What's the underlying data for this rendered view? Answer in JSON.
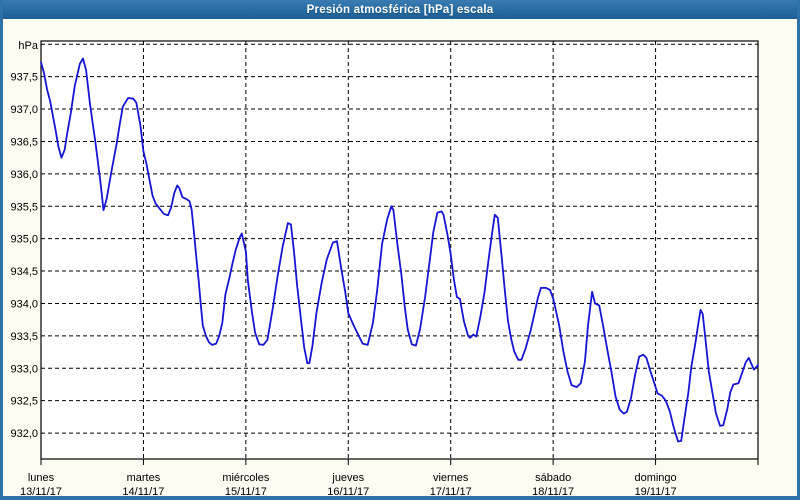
{
  "window": {
    "title": "Presión atmosférica [hPa] escala"
  },
  "colors": {
    "titlebar_blue": "#2a6fa4",
    "frame_border_blue": "#2e72a8",
    "page_background": "#fcfcf2",
    "plot_background": "#ffffff",
    "gridline": "#000000",
    "line_blue": "#1515d2",
    "label_text": "#000000",
    "title_text": "#ffffff"
  },
  "chart_data": {
    "type": "line",
    "title": "Presión atmosférica [hPa] escala",
    "unit_label": "hPa",
    "ylabel": "hPa",
    "ylim": [
      931.6,
      938.05
    ],
    "y_ticks": [
      932.0,
      932.5,
      933.0,
      933.5,
      934.0,
      934.5,
      935.0,
      935.5,
      936.0,
      936.5,
      937.0,
      937.5
    ],
    "y_grid_extra": [
      938.0
    ],
    "decimal_separator": ",",
    "grid": "dashed black, horizontal every 0.5 hPa, vertical at each day boundary",
    "legend_position": "none",
    "x_days": [
      {
        "name": "lunes",
        "date": "13/11/17"
      },
      {
        "name": "martes",
        "date": "14/11/17"
      },
      {
        "name": "miércoles",
        "date": "15/11/17"
      },
      {
        "name": "jueves",
        "date": "16/11/17"
      },
      {
        "name": "viernes",
        "date": "17/11/17"
      },
      {
        "name": "sábado",
        "date": "18/11/17"
      },
      {
        "name": "domingo",
        "date": "19/11/17"
      }
    ],
    "series": [
      {
        "name": "Presión atmosférica [hPa]",
        "x_unit": "days since lunes 13/11/17 00:00",
        "points": [
          [
            0.0,
            937.72
          ],
          [
            0.03,
            937.55
          ],
          [
            0.06,
            937.3
          ],
          [
            0.09,
            937.12
          ],
          [
            0.12,
            936.86
          ],
          [
            0.14,
            936.7
          ],
          [
            0.17,
            936.42
          ],
          [
            0.2,
            936.25
          ],
          [
            0.23,
            936.37
          ],
          [
            0.26,
            936.66
          ],
          [
            0.29,
            936.93
          ],
          [
            0.33,
            937.36
          ],
          [
            0.38,
            937.7
          ],
          [
            0.41,
            937.78
          ],
          [
            0.44,
            937.6
          ],
          [
            0.48,
            937.05
          ],
          [
            0.53,
            936.5
          ],
          [
            0.58,
            935.88
          ],
          [
            0.61,
            935.44
          ],
          [
            0.64,
            935.61
          ],
          [
            0.69,
            936.06
          ],
          [
            0.74,
            936.48
          ],
          [
            0.77,
            936.78
          ],
          [
            0.8,
            937.04
          ],
          [
            0.85,
            937.17
          ],
          [
            0.9,
            937.16
          ],
          [
            0.93,
            937.1
          ],
          [
            0.97,
            936.75
          ],
          [
            1.0,
            936.35
          ],
          [
            1.03,
            936.15
          ],
          [
            1.06,
            935.9
          ],
          [
            1.09,
            935.66
          ],
          [
            1.12,
            935.54
          ],
          [
            1.16,
            935.46
          ],
          [
            1.2,
            935.38
          ],
          [
            1.24,
            935.36
          ],
          [
            1.27,
            935.48
          ],
          [
            1.3,
            935.7
          ],
          [
            1.33,
            935.82
          ],
          [
            1.35,
            935.78
          ],
          [
            1.38,
            935.64
          ],
          [
            1.42,
            935.61
          ],
          [
            1.45,
            935.58
          ],
          [
            1.47,
            935.45
          ],
          [
            1.49,
            935.15
          ],
          [
            1.52,
            934.65
          ],
          [
            1.54,
            934.35
          ],
          [
            1.56,
            933.98
          ],
          [
            1.58,
            933.66
          ],
          [
            1.61,
            933.5
          ],
          [
            1.64,
            933.4
          ],
          [
            1.67,
            933.36
          ],
          [
            1.71,
            933.38
          ],
          [
            1.74,
            933.5
          ],
          [
            1.77,
            933.7
          ],
          [
            1.8,
            934.14
          ],
          [
            1.84,
            934.4
          ],
          [
            1.87,
            934.62
          ],
          [
            1.9,
            934.82
          ],
          [
            1.94,
            935.02
          ],
          [
            1.96,
            935.08
          ],
          [
            2.0,
            934.8
          ],
          [
            2.02,
            934.35
          ],
          [
            2.06,
            933.86
          ],
          [
            2.09,
            933.55
          ],
          [
            2.13,
            933.37
          ],
          [
            2.17,
            933.36
          ],
          [
            2.21,
            933.44
          ],
          [
            2.26,
            933.9
          ],
          [
            2.31,
            934.42
          ],
          [
            2.36,
            934.88
          ],
          [
            2.41,
            935.24
          ],
          [
            2.44,
            935.22
          ],
          [
            2.47,
            934.8
          ],
          [
            2.5,
            934.28
          ],
          [
            2.54,
            933.72
          ],
          [
            2.57,
            933.32
          ],
          [
            2.6,
            933.08
          ],
          [
            2.62,
            933.08
          ],
          [
            2.65,
            933.34
          ],
          [
            2.69,
            933.86
          ],
          [
            2.74,
            934.32
          ],
          [
            2.79,
            934.68
          ],
          [
            2.85,
            934.94
          ],
          [
            2.89,
            934.96
          ],
          [
            2.93,
            934.55
          ],
          [
            2.97,
            934.18
          ],
          [
            3.0,
            933.85
          ],
          [
            3.05,
            933.67
          ],
          [
            3.09,
            933.54
          ],
          [
            3.14,
            933.38
          ],
          [
            3.19,
            933.36
          ],
          [
            3.24,
            933.7
          ],
          [
            3.28,
            934.18
          ],
          [
            3.33,
            934.92
          ],
          [
            3.38,
            935.3
          ],
          [
            3.42,
            935.5
          ],
          [
            3.44,
            935.44
          ],
          [
            3.48,
            934.9
          ],
          [
            3.52,
            934.43
          ],
          [
            3.55,
            933.97
          ],
          [
            3.58,
            933.6
          ],
          [
            3.62,
            933.37
          ],
          [
            3.66,
            933.35
          ],
          [
            3.7,
            933.6
          ],
          [
            3.75,
            934.1
          ],
          [
            3.79,
            934.6
          ],
          [
            3.83,
            935.1
          ],
          [
            3.87,
            935.4
          ],
          [
            3.91,
            935.42
          ],
          [
            3.93,
            935.37
          ],
          [
            3.97,
            935.05
          ],
          [
            4.0,
            934.76
          ],
          [
            4.03,
            934.38
          ],
          [
            4.06,
            934.1
          ],
          [
            4.09,
            934.07
          ],
          [
            4.13,
            933.72
          ],
          [
            4.17,
            933.5
          ],
          [
            4.19,
            933.47
          ],
          [
            4.22,
            933.52
          ],
          [
            4.25,
            933.49
          ],
          [
            4.29,
            933.8
          ],
          [
            4.33,
            934.17
          ],
          [
            4.37,
            934.68
          ],
          [
            4.41,
            935.15
          ],
          [
            4.43,
            935.37
          ],
          [
            4.46,
            935.32
          ],
          [
            4.5,
            934.68
          ],
          [
            4.53,
            934.17
          ],
          [
            4.56,
            933.72
          ],
          [
            4.59,
            933.46
          ],
          [
            4.62,
            933.26
          ],
          [
            4.66,
            933.13
          ],
          [
            4.69,
            933.13
          ],
          [
            4.73,
            933.3
          ],
          [
            4.78,
            933.58
          ],
          [
            4.82,
            933.86
          ],
          [
            4.85,
            934.08
          ],
          [
            4.88,
            934.24
          ],
          [
            4.93,
            934.24
          ],
          [
            4.97,
            934.21
          ],
          [
            5.0,
            934.08
          ],
          [
            5.02,
            933.94
          ],
          [
            5.06,
            933.65
          ],
          [
            5.1,
            933.26
          ],
          [
            5.14,
            932.95
          ],
          [
            5.18,
            932.74
          ],
          [
            5.23,
            932.71
          ],
          [
            5.27,
            932.77
          ],
          [
            5.31,
            933.1
          ],
          [
            5.34,
            933.66
          ],
          [
            5.38,
            934.18
          ],
          [
            5.41,
            934.0
          ],
          [
            5.45,
            933.97
          ],
          [
            5.49,
            933.64
          ],
          [
            5.53,
            933.28
          ],
          [
            5.57,
            932.94
          ],
          [
            5.61,
            932.56
          ],
          [
            5.65,
            932.36
          ],
          [
            5.69,
            932.3
          ],
          [
            5.72,
            932.33
          ],
          [
            5.76,
            932.54
          ],
          [
            5.8,
            932.9
          ],
          [
            5.84,
            933.18
          ],
          [
            5.88,
            933.21
          ],
          [
            5.91,
            933.16
          ],
          [
            5.95,
            932.95
          ],
          [
            5.98,
            932.81
          ],
          [
            6.02,
            932.61
          ],
          [
            6.06,
            932.58
          ],
          [
            6.1,
            932.5
          ],
          [
            6.14,
            932.33
          ],
          [
            6.18,
            932.07
          ],
          [
            6.22,
            931.87
          ],
          [
            6.25,
            931.88
          ],
          [
            6.28,
            932.21
          ],
          [
            6.32,
            932.62
          ],
          [
            6.35,
            933.03
          ],
          [
            6.39,
            933.4
          ],
          [
            6.42,
            933.72
          ],
          [
            6.44,
            933.9
          ],
          [
            6.46,
            933.84
          ],
          [
            6.49,
            933.4
          ],
          [
            6.52,
            932.95
          ],
          [
            6.56,
            932.58
          ],
          [
            6.59,
            932.3
          ],
          [
            6.63,
            932.11
          ],
          [
            6.66,
            932.12
          ],
          [
            6.7,
            932.37
          ],
          [
            6.73,
            932.63
          ],
          [
            6.76,
            932.75
          ],
          [
            6.81,
            932.77
          ],
          [
            6.85,
            932.95
          ],
          [
            6.88,
            933.09
          ],
          [
            6.91,
            933.16
          ],
          [
            6.94,
            933.05
          ],
          [
            6.96,
            932.98
          ],
          [
            6.99,
            933.03
          ],
          [
            7.0,
            933.05
          ]
        ]
      }
    ]
  }
}
